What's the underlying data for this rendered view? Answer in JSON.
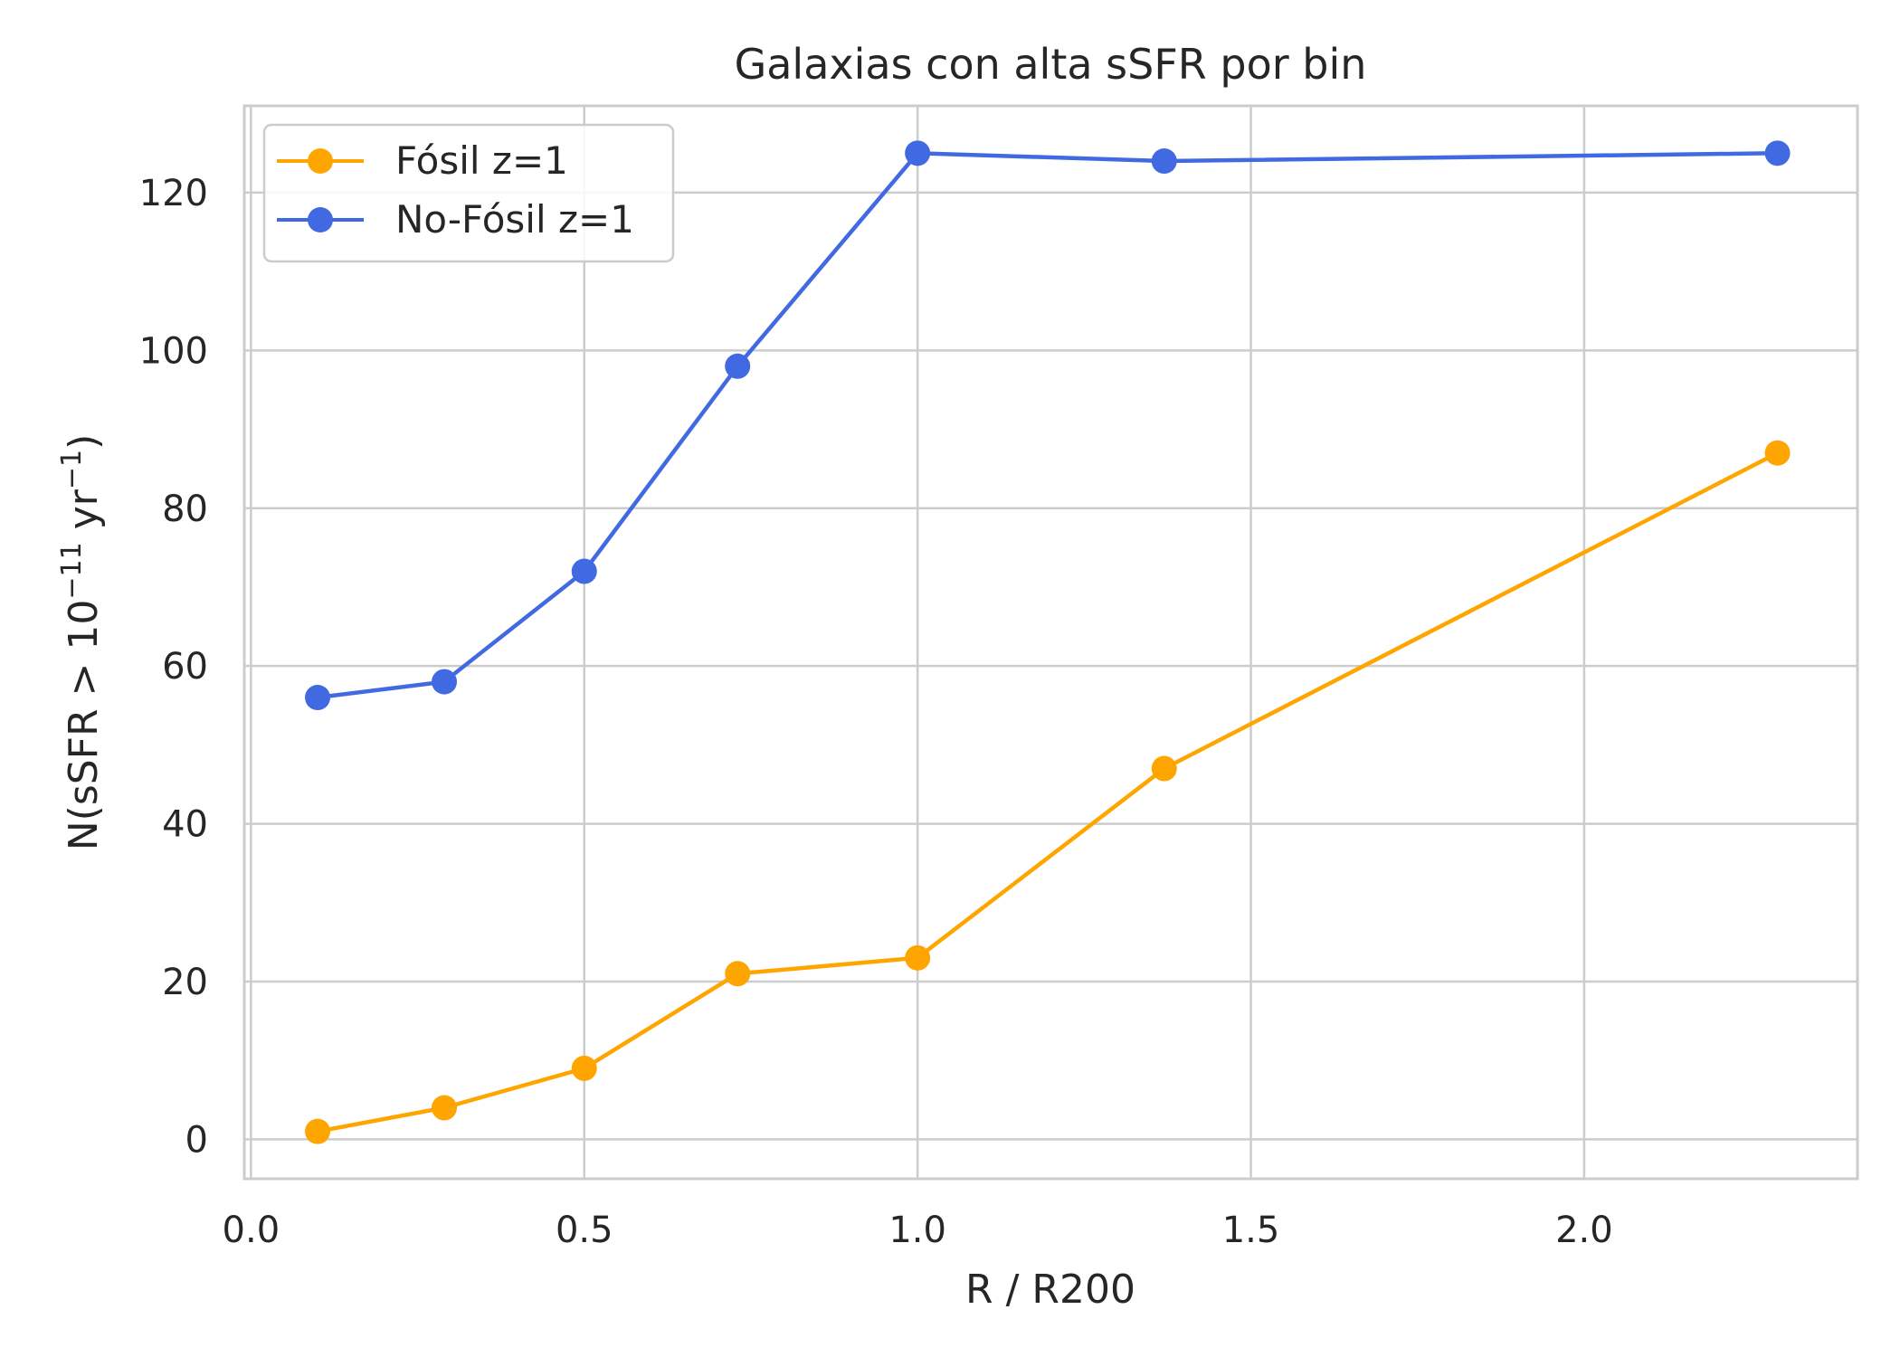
{
  "chart_data": {
    "type": "line",
    "title": "Galaxias con alta sSFR por bin",
    "xlabel": "R / R200",
    "ylabel": {
      "prefix": "N(sSFR > 10",
      "exp1": "−11",
      "mid": " yr",
      "exp2": "−1",
      "suffix": ")"
    },
    "xlim": [
      -0.01,
      2.41
    ],
    "ylim": [
      -5,
      131
    ],
    "xticks": [
      0.0,
      0.5,
      1.0,
      1.5,
      2.0
    ],
    "xtick_labels": [
      "0.0",
      "0.5",
      "1.0",
      "1.5",
      "2.0"
    ],
    "yticks": [
      0,
      20,
      40,
      60,
      80,
      100,
      120
    ],
    "ytick_labels": [
      "0",
      "20",
      "40",
      "60",
      "80",
      "100",
      "120"
    ],
    "grid": true,
    "legend_position": "top-left",
    "series": [
      {
        "name": "Fósil z=1",
        "color": "#FFA500",
        "x": [
          0.1,
          0.29,
          0.5,
          0.73,
          1.0,
          1.37,
          2.29
        ],
        "y": [
          1,
          4,
          9,
          21,
          23,
          47,
          87
        ]
      },
      {
        "name": "No-Fósil z=1",
        "color": "#4169E1",
        "x": [
          0.1,
          0.29,
          0.5,
          0.73,
          1.0,
          1.37,
          2.29
        ],
        "y": [
          56,
          58,
          72,
          98,
          125,
          124,
          125
        ]
      }
    ]
  }
}
